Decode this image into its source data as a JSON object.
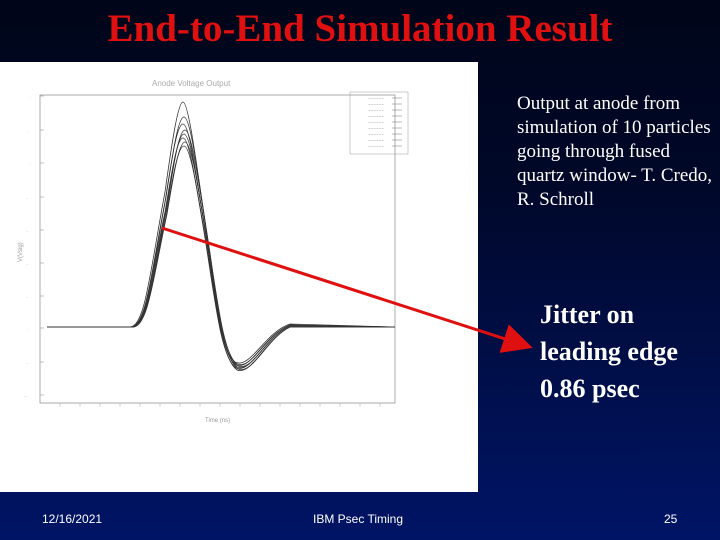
{
  "slide": {
    "title": "End-to-End Simulation Result",
    "caption": "Output at anode from simulation of 10 particles going through fused quartz window- T. Credo, R. Schroll",
    "callout": "Jitter on leading edge 0.86 psec"
  },
  "footer": {
    "date": "12/16/2021",
    "center": "IBM Psec Timing",
    "page": "25"
  },
  "colors": {
    "title": "#e01010",
    "arrow": "#e01010",
    "text": "#ffffff",
    "background": "#000a30"
  }
}
